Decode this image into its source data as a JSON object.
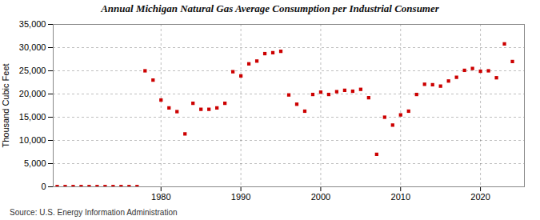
{
  "chart_data": {
    "type": "scatter",
    "title": "Annual Michigan Natural Gas Average Consumption per Industrial Consumer",
    "ylabel": "Thousand Cubic Feet",
    "annotations": [
      "Source: U.S. Energy Information Administration"
    ],
    "x": [
      1967,
      1968,
      1969,
      1970,
      1971,
      1972,
      1973,
      1974,
      1975,
      1976,
      1977,
      1978,
      1979,
      1980,
      1981,
      1982,
      1983,
      1984,
      1985,
      1986,
      1987,
      1988,
      1989,
      1990,
      1991,
      1992,
      1993,
      1994,
      1995,
      1996,
      1997,
      1998,
      1999,
      2000,
      2001,
      2002,
      2003,
      2004,
      2005,
      2006,
      2007,
      2008,
      2009,
      2010,
      2011,
      2012,
      2013,
      2014,
      2015,
      2016,
      2017,
      2018,
      2019,
      2020,
      2021,
      2022,
      2023,
      2024
    ],
    "values": [
      50,
      50,
      50,
      50,
      50,
      50,
      50,
      50,
      50,
      50,
      50,
      25000,
      23000,
      18700,
      17000,
      16200,
      11400,
      18000,
      16700,
      16700,
      17000,
      18000,
      24800,
      23900,
      26500,
      27100,
      28700,
      28900,
      29200,
      19800,
      17800,
      16300,
      19900,
      20400,
      19900,
      20500,
      20800,
      20600,
      21000,
      19200,
      7000,
      15000,
      13300,
      15500,
      16300,
      19900,
      22100,
      22000,
      21700,
      22800,
      23600,
      25100,
      25500,
      24900,
      25000,
      23500,
      30800,
      27000
    ],
    "color": "#cc0000",
    "marker": "square",
    "xlim": [
      1966.5,
      2025.5
    ],
    "xticks": [
      1980,
      1990,
      2000,
      2010,
      2020
    ],
    "ylim": [
      0,
      35000
    ],
    "yticks": [
      0,
      {
        "value": 5000,
        "label": "5,000"
      },
      {
        "value": 10000,
        "label": "10,000"
      },
      {
        "value": 15000,
        "label": "15,000"
      },
      {
        "value": 20000,
        "label": "20,000"
      },
      {
        "value": 25000,
        "label": "25,000"
      },
      {
        "value": 30000,
        "label": "30,000"
      },
      {
        "value": 35000,
        "label": "35,000"
      }
    ],
    "grid": true
  }
}
